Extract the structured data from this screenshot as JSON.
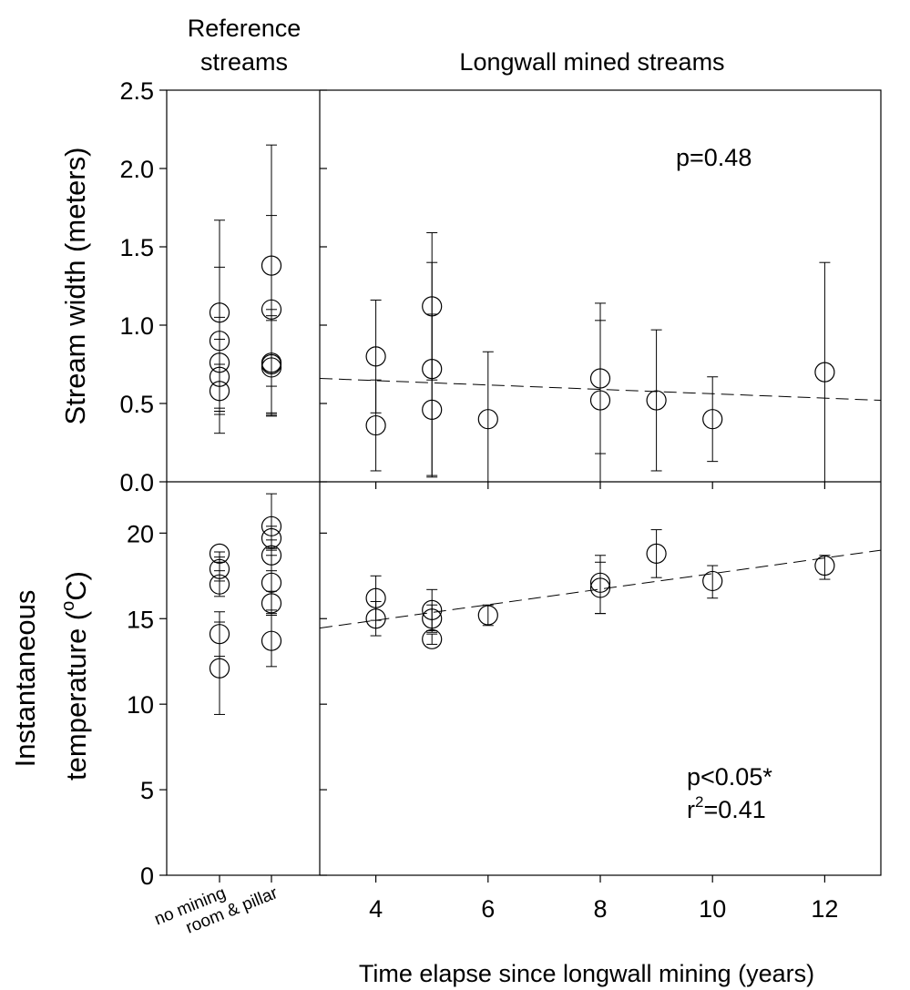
{
  "chart_data": [
    {
      "type": "scatter",
      "panel": "top",
      "ylabel": "Stream width (meters)",
      "ylim": [
        0,
        2.5
      ],
      "yticks": [
        "0.0",
        "0.5",
        "1.0",
        "1.5",
        "2.0",
        "2.5"
      ],
      "annotation": [
        "p=0.48"
      ],
      "reference": {
        "header": [
          "Reference",
          "streams"
        ],
        "categories": [
          "no mining",
          "room & pillar"
        ],
        "points": [
          {
            "cat": 0,
            "y": 1.08,
            "err_low": 0.31,
            "err_high": 1.67
          },
          {
            "cat": 0,
            "y": 0.9,
            "err_low": 0.45,
            "err_high": 1.37
          },
          {
            "cat": 0,
            "y": 0.76,
            "err_low": 0.47,
            "err_high": 1.05
          },
          {
            "cat": 0,
            "y": 0.67,
            "err_low": 0.43,
            "err_high": 0.91
          },
          {
            "cat": 0,
            "y": 0.58,
            "err_low": 0.45,
            "err_high": 0.75
          },
          {
            "cat": 1,
            "y": 1.38,
            "err_low": 0.61,
            "err_high": 2.15
          },
          {
            "cat": 1,
            "y": 1.1,
            "err_low": 0.42,
            "err_high": 1.7
          },
          {
            "cat": 1,
            "y": 0.76,
            "err_low": 0.42,
            "err_high": 1.1
          },
          {
            "cat": 1,
            "y": 0.75,
            "err_low": 0.44,
            "err_high": 1.06
          },
          {
            "cat": 1,
            "y": 0.73,
            "err_low": 0.43,
            "err_high": 1.03
          }
        ]
      },
      "longwall": {
        "header": "Longwall mined streams",
        "xlim": [
          3,
          13
        ],
        "points": [
          {
            "x": 4,
            "y": 0.8,
            "err_low": 0.44,
            "err_high": 1.16
          },
          {
            "x": 4,
            "y": 0.36,
            "err_low": 0.07,
            "err_high": 0.65
          },
          {
            "x": 5,
            "y": 1.12,
            "err_low": 0.65,
            "err_high": 1.59
          },
          {
            "x": 5,
            "y": 0.72,
            "err_low": 0.04,
            "err_high": 1.4
          },
          {
            "x": 5,
            "y": 0.46,
            "err_low": 0.03,
            "err_high": 1.07
          },
          {
            "x": 6,
            "y": 0.4,
            "err_low": 0,
            "err_high": 0.83
          },
          {
            "x": 8,
            "y": 0.66,
            "err_low": 0.18,
            "err_high": 1.14
          },
          {
            "x": 8,
            "y": 0.52,
            "err_low": 0,
            "err_high": 1.03
          },
          {
            "x": 9,
            "y": 0.52,
            "err_low": 0.07,
            "err_high": 0.97
          },
          {
            "x": 10,
            "y": 0.4,
            "err_low": 0.13,
            "err_high": 0.67
          },
          {
            "x": 12,
            "y": 0.7,
            "err_low": 0,
            "err_high": 1.4
          }
        ],
        "regression": {
          "x": [
            3,
            13
          ],
          "y": [
            0.66,
            0.52
          ]
        }
      }
    },
    {
      "type": "scatter",
      "panel": "bottom",
      "ylabel_lines": [
        "Instantaneous",
        "temperature (",
        "o",
        "C)"
      ],
      "ylim": [
        0,
        23
      ],
      "yticks": [
        "0",
        "5",
        "10",
        "15",
        "20"
      ],
      "annotation": [
        "p<0.05*",
        "r",
        "2",
        "=0.41"
      ],
      "reference": {
        "categories": [
          "no mining",
          "room & pillar"
        ],
        "points": [
          {
            "cat": 0,
            "y": 18.8,
            "err_low": 18.3,
            "err_high": 18.9
          },
          {
            "cat": 0,
            "y": 17.9,
            "err_low": 17.2,
            "err_high": 18.6
          },
          {
            "cat": 0,
            "y": 17,
            "err_low": 16.3,
            "err_high": 17.8
          },
          {
            "cat": 0,
            "y": 14.1,
            "err_low": 12.8,
            "err_high": 15.4
          },
          {
            "cat": 0,
            "y": 12.1,
            "err_low": 9.4,
            "err_high": 14.8
          },
          {
            "cat": 1,
            "y": 20.4,
            "err_low": 19.1,
            "err_high": 22.3
          },
          {
            "cat": 1,
            "y": 19.7,
            "err_low": 19,
            "err_high": 20.4
          },
          {
            "cat": 1,
            "y": 18.7,
            "err_low": 17.8,
            "err_high": 19.6
          },
          {
            "cat": 1,
            "y": 17.1,
            "err_low": 15.5,
            "err_high": 18.7
          },
          {
            "cat": 1,
            "y": 15.9,
            "err_low": 15.2,
            "err_high": 16.6
          },
          {
            "cat": 1,
            "y": 13.7,
            "err_low": 12.2,
            "err_high": 15.3
          }
        ]
      },
      "longwall": {
        "header": "",
        "xlabel": "Time elapse since longwall mining (years)",
        "xlim": [
          3,
          13
        ],
        "xticks": [
          "4",
          "6",
          "8",
          "10",
          "12"
        ],
        "points": [
          {
            "x": 4,
            "y": 16.2,
            "err_low": 14.9,
            "err_high": 17.5
          },
          {
            "x": 4,
            "y": 15,
            "err_low": 14,
            "err_high": 16
          },
          {
            "x": 5,
            "y": 15.5,
            "err_low": 14.3,
            "err_high": 16.7
          },
          {
            "x": 5,
            "y": 15,
            "err_low": 14.2,
            "err_high": 15.8
          },
          {
            "x": 5,
            "y": 13.8,
            "err_low": 13.5,
            "err_high": 14.1
          },
          {
            "x": 6,
            "y": 15.2,
            "err_low": 14.6,
            "err_high": 15.8
          },
          {
            "x": 8,
            "y": 17.1,
            "err_low": 15.3,
            "err_high": 18.7
          },
          {
            "x": 8,
            "y": 16.8,
            "err_low": 15.3,
            "err_high": 18.3
          },
          {
            "x": 9,
            "y": 18.8,
            "err_low": 17.4,
            "err_high": 20.2
          },
          {
            "x": 10,
            "y": 17.2,
            "err_low": 16.2,
            "err_high": 18.1
          },
          {
            "x": 12,
            "y": 18.1,
            "err_low": 17.3,
            "err_high": 18.7
          }
        ],
        "regression": {
          "x": [
            3,
            13
          ],
          "y": [
            14.45,
            19
          ]
        }
      }
    }
  ]
}
